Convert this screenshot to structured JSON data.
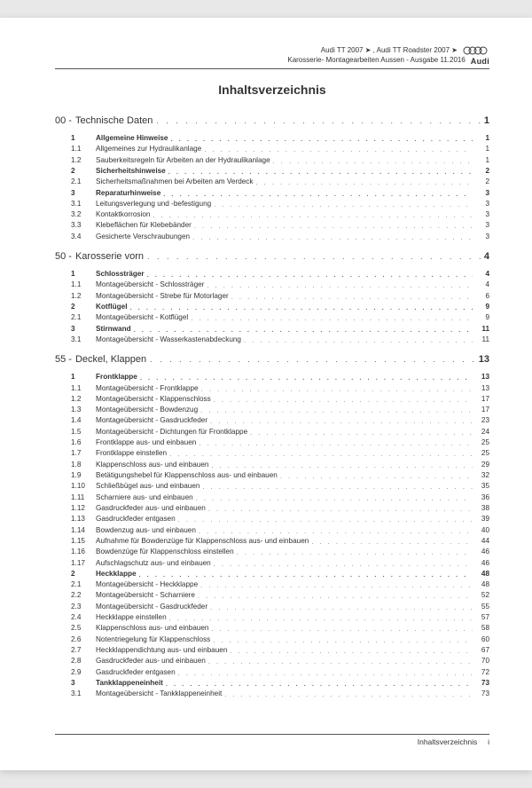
{
  "header": {
    "line1_models": "Audi TT 2007 ➤ , Audi TT Roadster 2007 ➤",
    "line2_doc": "Karosserie- Montagearbeiten Aussen - Ausgabe 11.2016",
    "brand": "Audi"
  },
  "title": "Inhaltsverzeichnis",
  "sections": [
    {
      "num": "00 -",
      "label": "Technische Daten",
      "page": "1",
      "entries": [
        {
          "n": "1",
          "t": "Allgemeine Hinweise",
          "p": "1",
          "b": true
        },
        {
          "n": "1.1",
          "t": "Allgemeines zur Hydraulikanlage",
          "p": "1"
        },
        {
          "n": "1.2",
          "t": "Sauberkeitsregeln für Arbeiten an der Hydraulikanlage",
          "p": "1"
        },
        {
          "n": "2",
          "t": "Sicherheitshinweise",
          "p": "2",
          "b": true
        },
        {
          "n": "2.1",
          "t": "Sicherheitsmaßnahmen bei Arbeiten am Verdeck",
          "p": "2"
        },
        {
          "n": "3",
          "t": "Reparaturhinweise",
          "p": "3",
          "b": true
        },
        {
          "n": "3.1",
          "t": "Leitungsverlegung und -befestigung",
          "p": "3"
        },
        {
          "n": "3.2",
          "t": "Kontaktkorrosion",
          "p": "3"
        },
        {
          "n": "3.3",
          "t": "Klebeflächen für Klebebänder",
          "p": "3"
        },
        {
          "n": "3.4",
          "t": "Gesicherte Verschraubungen",
          "p": "3"
        }
      ]
    },
    {
      "num": "50 -",
      "label": "Karosserie vorn",
      "page": "4",
      "entries": [
        {
          "n": "1",
          "t": "Schlossträger",
          "p": "4",
          "b": true
        },
        {
          "n": "1.1",
          "t": "Montageübersicht - Schlossträger",
          "p": "4"
        },
        {
          "n": "1.2",
          "t": "Montageübersicht - Strebe für Motorlager",
          "p": "6"
        },
        {
          "n": "2",
          "t": "Kotflügel",
          "p": "9",
          "b": true
        },
        {
          "n": "2.1",
          "t": "Montageübersicht - Kotflügel",
          "p": "9"
        },
        {
          "n": "3",
          "t": "Stirnwand",
          "p": "11",
          "b": true
        },
        {
          "n": "3.1",
          "t": "Montageübersicht - Wasserkastenabdeckung",
          "p": "11"
        }
      ]
    },
    {
      "num": "55 -",
      "label": "Deckel, Klappen",
      "page": "13",
      "entries": [
        {
          "n": "1",
          "t": "Frontklappe",
          "p": "13",
          "b": true
        },
        {
          "n": "1.1",
          "t": "Montageübersicht - Frontklappe",
          "p": "13"
        },
        {
          "n": "1.2",
          "t": "Montageübersicht - Klappenschloss",
          "p": "17"
        },
        {
          "n": "1.3",
          "t": "Montageübersicht - Bowdenzug",
          "p": "17"
        },
        {
          "n": "1.4",
          "t": "Montageübersicht - Gasdruckfeder",
          "p": "23"
        },
        {
          "n": "1.5",
          "t": "Montageübersicht - Dichtungen für Frontklappe",
          "p": "24"
        },
        {
          "n": "1.6",
          "t": "Frontklappe aus- und einbauen",
          "p": "25"
        },
        {
          "n": "1.7",
          "t": "Frontklappe einstellen",
          "p": "25"
        },
        {
          "n": "1.8",
          "t": "Klappenschloss aus- und einbauen",
          "p": "29"
        },
        {
          "n": "1.9",
          "t": "Betätigungshebel für Klappenschloss aus- und einbauen",
          "p": "32"
        },
        {
          "n": "1.10",
          "t": "Schließbügel aus- und einbauen",
          "p": "35"
        },
        {
          "n": "1.11",
          "t": "Scharniere aus- und einbauen",
          "p": "36"
        },
        {
          "n": "1.12",
          "t": "Gasdruckfeder aus- und einbauen",
          "p": "38"
        },
        {
          "n": "1.13",
          "t": "Gasdruckfeder entgasen",
          "p": "39"
        },
        {
          "n": "1.14",
          "t": "Bowdenzug aus- und einbauen",
          "p": "40"
        },
        {
          "n": "1.15",
          "t": "Aufnahme für Bowdenzüge für Klappenschloss aus- und einbauen",
          "p": "44"
        },
        {
          "n": "1.16",
          "t": "Bowdenzüge für Klappenschloss einstellen",
          "p": "46"
        },
        {
          "n": "1.17",
          "t": "Aufschlagschutz aus- und einbauen",
          "p": "46"
        },
        {
          "n": "2",
          "t": "Heckklappe",
          "p": "48",
          "b": true
        },
        {
          "n": "2.1",
          "t": "Montageübersicht - Heckklappe",
          "p": "48"
        },
        {
          "n": "2.2",
          "t": "Montageübersicht - Scharniere",
          "p": "52"
        },
        {
          "n": "2.3",
          "t": "Montageübersicht - Gasdruckfeder",
          "p": "55"
        },
        {
          "n": "2.4",
          "t": "Heckklappe einstellen",
          "p": "57"
        },
        {
          "n": "2.5",
          "t": "Klappenschloss aus- und einbauen",
          "p": "58"
        },
        {
          "n": "2.6",
          "t": "Notentriegelung für Klappenschloss",
          "p": "60"
        },
        {
          "n": "2.7",
          "t": "Heckklappendichtung aus- und einbauen",
          "p": "67"
        },
        {
          "n": "2.8",
          "t": "Gasdruckfeder aus- und einbauen",
          "p": "70"
        },
        {
          "n": "2.9",
          "t": "Gasdruckfeder entgasen",
          "p": "72"
        },
        {
          "n": "3",
          "t": "Tankklappeneinheit",
          "p": "73",
          "b": true
        },
        {
          "n": "3.1",
          "t": "Montageübersicht - Tankklappeneinheit",
          "p": "73"
        }
      ]
    }
  ],
  "footer": {
    "label": "Inhaltsverzeichnis",
    "pagenum": "i"
  },
  "colors": {
    "page_bg": "#ffffff",
    "body_bg": "#e8e8e8",
    "text": "#333333",
    "rule": "#555555"
  },
  "typography": {
    "body_fontsize_pt": 8.2,
    "title_fontsize_pt": 14,
    "section_fontsize_pt": 11,
    "font_family": "Arial"
  }
}
